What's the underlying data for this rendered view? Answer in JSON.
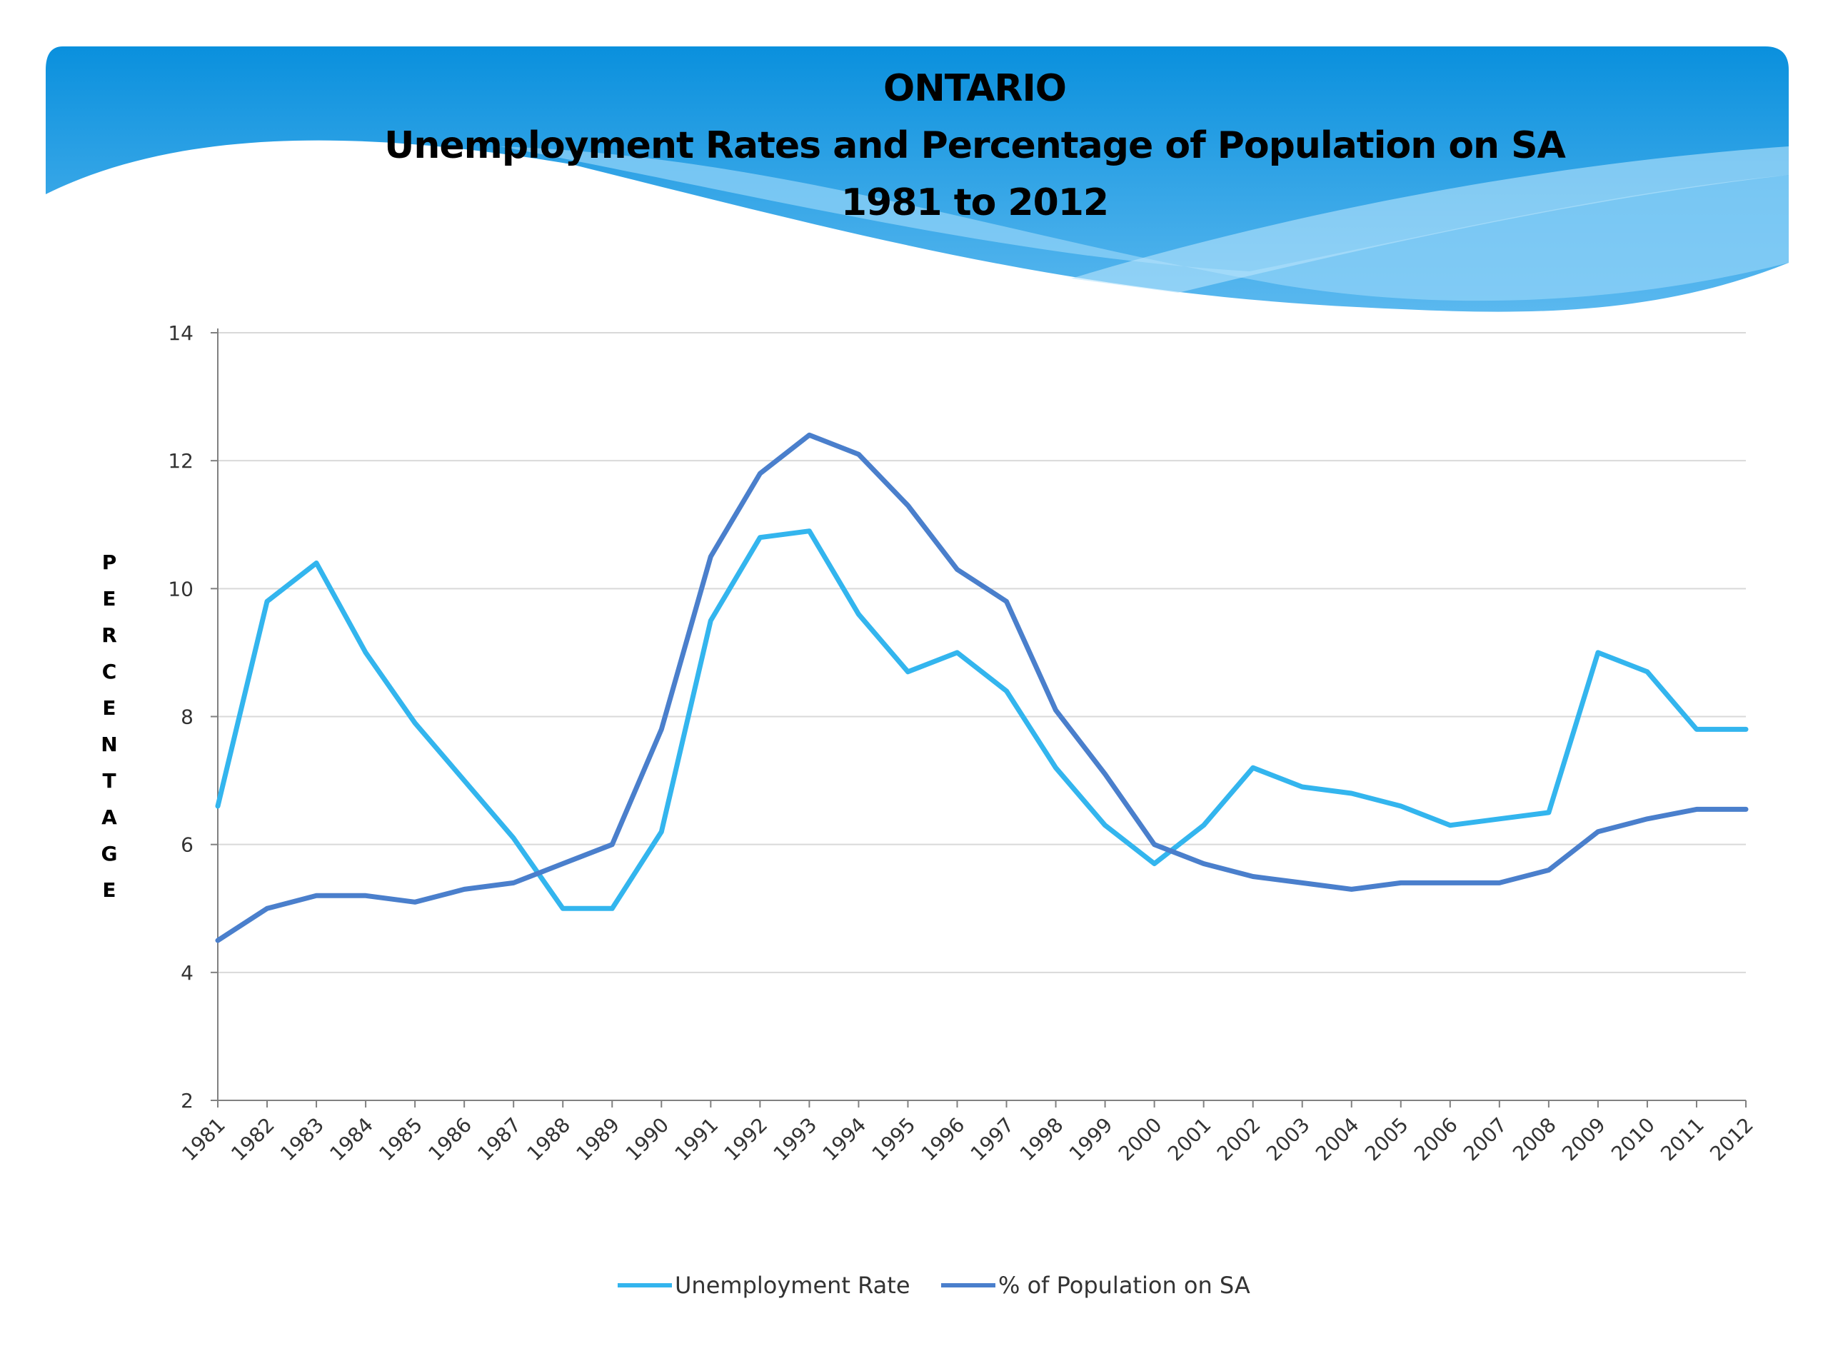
{
  "title": {
    "line1": "ONTARIO",
    "line2": "Unemployment Rates and Percentage of Population on SA",
    "line3": "1981 to 2012"
  },
  "colors": {
    "banner_dark": "#0a90dd",
    "banner_light": "#7ccaf5",
    "unemployment": "#33b5ee",
    "sa": "#4a7fcc",
    "grid": "#d9d9d9",
    "axis": "#808080"
  },
  "chart_data": {
    "type": "line",
    "title": "ONTARIO Unemployment Rates and Percentage of Population on SA 1981 to 2012",
    "xlabel": "",
    "ylabel": "PERCENTAGE",
    "ylim": [
      2,
      14
    ],
    "yticks": [
      2,
      4,
      6,
      8,
      10,
      12,
      14
    ],
    "grid": true,
    "legend_position": "bottom",
    "categories": [
      "1981",
      "1982",
      "1983",
      "1984",
      "1985",
      "1986",
      "1987",
      "1988",
      "1989",
      "1990",
      "1991",
      "1992",
      "1993",
      "1994",
      "1995",
      "1996",
      "1997",
      "1998",
      "1999",
      "2000",
      "2001",
      "2002",
      "2003",
      "2004",
      "2005",
      "2006",
      "2007",
      "2008",
      "2009",
      "2010",
      "2011",
      "2012"
    ],
    "series": [
      {
        "name": "Unemployment Rate",
        "color": "#33b5ee",
        "values": [
          6.6,
          9.8,
          10.4,
          9.0,
          7.9,
          7.0,
          6.1,
          5.0,
          5.0,
          6.2,
          9.5,
          10.8,
          10.9,
          9.6,
          8.7,
          9.0,
          8.4,
          7.2,
          6.3,
          5.7,
          6.3,
          7.2,
          6.9,
          6.8,
          6.6,
          6.3,
          6.4,
          6.5,
          9.0,
          8.7,
          7.8,
          7.8
        ]
      },
      {
        "name": "% of Population on SA",
        "color": "#4a7fcc",
        "values": [
          4.5,
          5.0,
          5.2,
          5.2,
          5.1,
          5.3,
          5.4,
          5.7,
          6.0,
          7.8,
          10.5,
          11.8,
          12.4,
          12.1,
          11.3,
          10.3,
          9.8,
          8.1,
          7.1,
          6.0,
          5.7,
          5.5,
          5.4,
          5.3,
          5.4,
          5.4,
          5.4,
          5.6,
          6.2,
          6.4,
          6.55,
          6.55
        ]
      }
    ]
  }
}
